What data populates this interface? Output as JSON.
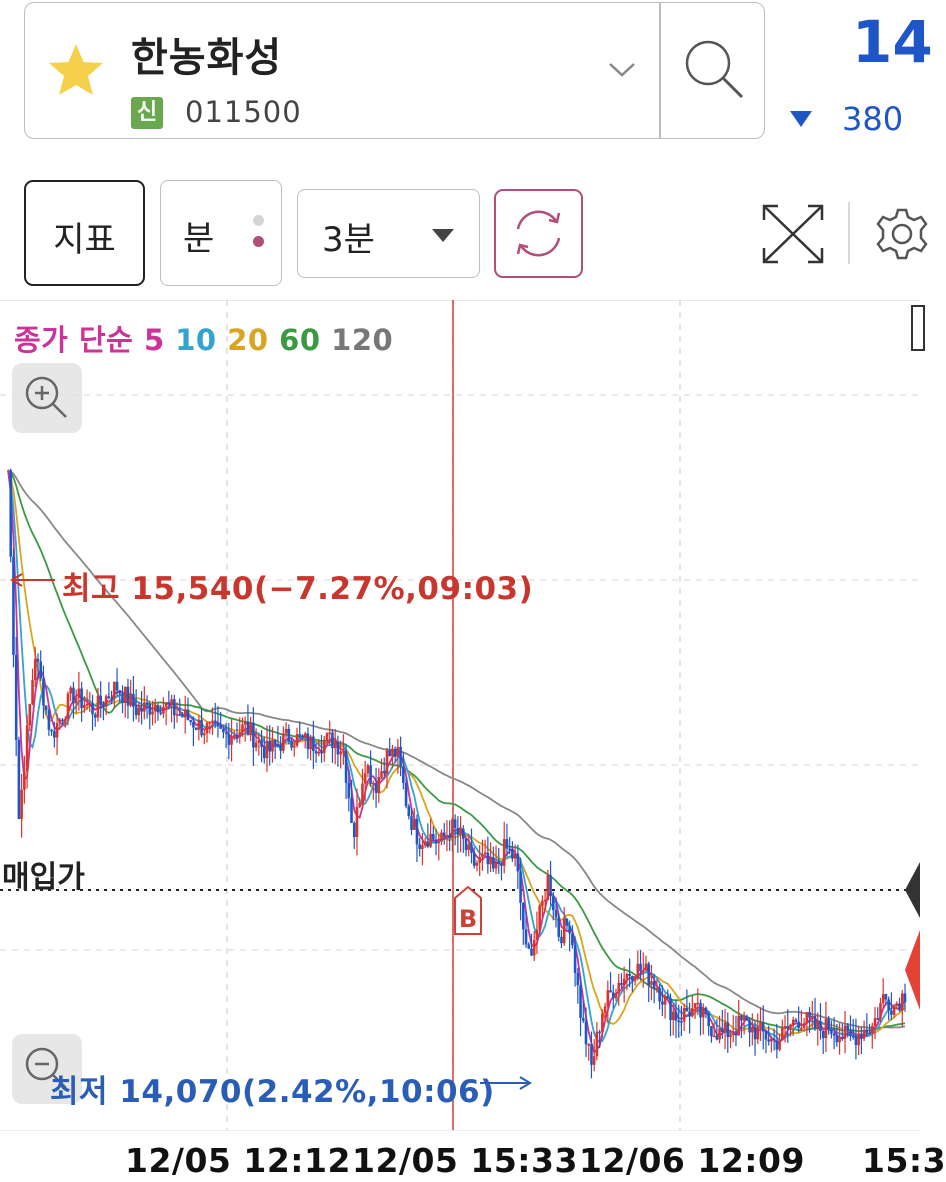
{
  "stock": {
    "name": "한농화성",
    "badge": "신",
    "code": "011500",
    "price": "14",
    "change": "380"
  },
  "toolbar": {
    "indicator_label": "지표",
    "unit_label": "분",
    "period_label": "3분"
  },
  "icons": {
    "favorite": "star-icon",
    "dropdown": "chevron-down-icon",
    "search": "search-icon",
    "refresh": "refresh-icon",
    "fullscreen": "expand-icon",
    "settings": "gear-icon",
    "zoom_in": "zoom-in-icon",
    "zoom_out": "zoom-out-icon",
    "period_dropdown": "triangle-down-icon"
  },
  "colors": {
    "price_down": "#1f56c7",
    "candle_up": "#d8342c",
    "candle_down": "#1f56c7",
    "ma5": "#cc3399",
    "ma10": "#33a3cf",
    "ma20": "#d9a520",
    "ma60": "#3a9a44",
    "ma120": "#888888",
    "high_label": "#c8372d",
    "low_label": "#2a5db5"
  },
  "chart_data": {
    "type": "candlestick",
    "interval": "3분",
    "legend": {
      "prefix": "종가 단순",
      "periods": [
        "5",
        "10",
        "20",
        "60",
        "120"
      ],
      "colors": [
        "#cc3399",
        "#33a3cf",
        "#d9a520",
        "#3a9a44",
        "#888888"
      ]
    },
    "high_label": "최고 15,540(−7.27%,09:03)",
    "low_label": "최저 14,070(2.42%,10:06)",
    "high_price": 15540,
    "low_price": 14070,
    "buy_price_label": "매입가",
    "buy_marker": "B",
    "x_ticks": [
      "12/05 12:12",
      "12/05 15:33",
      "12/06 12:09",
      "15:3"
    ],
    "y_range": [
      13950,
      15950
    ],
    "close_path": [
      [
        0,
        15540
      ],
      [
        2,
        14700
      ],
      [
        5,
        15100
      ],
      [
        8,
        14900
      ],
      [
        12,
        15000
      ],
      [
        16,
        14960
      ],
      [
        20,
        15020
      ],
      [
        24,
        14960
      ],
      [
        28,
        14980
      ],
      [
        32,
        14950
      ],
      [
        36,
        14920
      ],
      [
        40,
        14900
      ],
      [
        44,
        14920
      ],
      [
        48,
        14860
      ],
      [
        52,
        14900
      ],
      [
        56,
        14880
      ],
      [
        60,
        14890
      ],
      [
        62,
        14870
      ],
      [
        64,
        14660
      ],
      [
        66,
        14840
      ],
      [
        68,
        14780
      ],
      [
        70,
        14850
      ],
      [
        72,
        14860
      ],
      [
        74,
        14720
      ],
      [
        76,
        14650
      ],
      [
        78,
        14660
      ],
      [
        80,
        14640
      ],
      [
        82,
        14680
      ],
      [
        84,
        14650
      ],
      [
        86,
        14590
      ],
      [
        88,
        14600
      ],
      [
        90,
        14570
      ],
      [
        92,
        14630
      ],
      [
        94,
        14600
      ],
      [
        96,
        14360
      ],
      [
        98,
        14440
      ],
      [
        100,
        14560
      ],
      [
        102,
        14420
      ],
      [
        104,
        14450
      ],
      [
        106,
        14230
      ],
      [
        108,
        14100
      ],
      [
        110,
        14240
      ],
      [
        112,
        14290
      ],
      [
        114,
        14320
      ],
      [
        116,
        14340
      ],
      [
        118,
        14330
      ],
      [
        120,
        14300
      ],
      [
        122,
        14250
      ],
      [
        124,
        14220
      ],
      [
        126,
        14240
      ],
      [
        128,
        14230
      ],
      [
        130,
        14200
      ],
      [
        132,
        14180
      ],
      [
        134,
        14190
      ],
      [
        136,
        14210
      ],
      [
        138,
        14190
      ],
      [
        140,
        14180
      ],
      [
        142,
        14160
      ],
      [
        144,
        14190
      ],
      [
        146,
        14220
      ],
      [
        148,
        14210
      ],
      [
        150,
        14190
      ],
      [
        152,
        14200
      ],
      [
        154,
        14180
      ],
      [
        156,
        14170
      ],
      [
        158,
        14190
      ],
      [
        160,
        14200
      ],
      [
        162,
        14270
      ],
      [
        164,
        14250
      ],
      [
        166,
        14280
      ]
    ]
  }
}
